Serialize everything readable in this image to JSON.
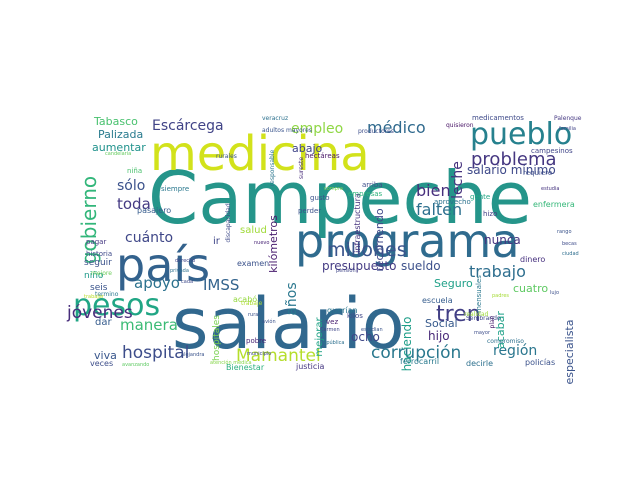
{
  "words": [
    {
      "text": "Campeche",
      "color": "#25958a"
    },
    {
      "text": "salario",
      "color": "#31688e"
    },
    {
      "text": "programa",
      "color": "#2f6b8e"
    },
    {
      "text": "medicina",
      "color": "#d2e21b"
    },
    {
      "text": "país",
      "color": "#33628d"
    },
    {
      "text": "pueblo",
      "color": "#26818e"
    },
    {
      "text": "pesos",
      "color": "#21a685"
    },
    {
      "text": "problema",
      "color": "#453781"
    },
    {
      "text": "corrupción",
      "color": "#2a788e"
    },
    {
      "text": "Mamantel",
      "color": "#b5de2b"
    },
    {
      "text": "hospital",
      "color": "#3d4d8a"
    },
    {
      "text": "tren",
      "color": "#423f85"
    },
    {
      "text": "millones",
      "color": "#3a548c"
    },
    {
      "text": "trabajo",
      "color": "#2e6e8e"
    },
    {
      "text": "médico",
      "color": "#306a8e"
    },
    {
      "text": "empleo",
      "color": "#8fd744"
    },
    {
      "text": "Escárcega",
      "color": "#414487"
    },
    {
      "text": "apoyo",
      "color": "#2c728e"
    },
    {
      "text": "IMSS",
      "color": "#33638d"
    },
    {
      "text": "jóvenes",
      "color": "#472d7b"
    },
    {
      "text": "manera",
      "color": "#3bbb75"
    },
    {
      "text": "bien",
      "color": "#472f7d"
    },
    {
      "text": "falten",
      "color": "#2d708e"
    },
    {
      "text": "toda",
      "color": "#443a83"
    },
    {
      "text": "cuánto",
      "color": "#3f4788"
    },
    {
      "text": "gobierno",
      "color": "#32b67a"
    },
    {
      "text": "leche",
      "color": "#46327e"
    },
    {
      "text": "región",
      "color": "#2a768e"
    },
    {
      "text": "sólo",
      "color": "#3b528b"
    },
    {
      "text": "aumentar",
      "color": "#20928c"
    },
    {
      "text": "Palizada",
      "color": "#297b8e"
    },
    {
      "text": "Tabasco",
      "color": "#48c16e"
    },
    {
      "text": "salario mínimo",
      "color": "#3e4989"
    },
    {
      "text": "presupuesto",
      "color": "#443b84"
    },
    {
      "text": "kilómetros",
      "color": "#481c6e"
    },
    {
      "text": "años",
      "color": "#2a778e"
    },
    {
      "text": "sueldo",
      "color": "#3c508b"
    },
    {
      "text": "Seguro",
      "color": "#1fa088"
    },
    {
      "text": "cuatro",
      "color": "#5ec962"
    },
    {
      "text": "hijo",
      "color": "#482878"
    },
    {
      "text": "recorriendo",
      "color": "#3f4889"
    },
    {
      "text": "haciendo",
      "color": "#1f9e89"
    },
    {
      "text": "Social",
      "color": "#375a8c"
    },
    {
      "text": "acabar",
      "color": "#1fa188"
    },
    {
      "text": "especialista",
      "color": "#3a538b"
    },
    {
      "text": "ocho",
      "color": "#3f4788"
    },
    {
      "text": "nunca",
      "color": "#46337f"
    },
    {
      "text": "abajo",
      "color": "#404588"
    },
    {
      "text": "viva",
      "color": "#39568c"
    },
    {
      "text": "dar",
      "color": "#365c8d"
    },
    {
      "text": "seguir",
      "color": "#3b528b"
    },
    {
      "text": "niño",
      "color": "#1f9a8a"
    },
    {
      "text": "seis",
      "color": "#3a538b"
    },
    {
      "text": "pasajero",
      "color": "#365c8d"
    },
    {
      "text": "siempre",
      "color": "#2a788e"
    },
    {
      "text": "hospitales",
      "color": "#7ad151"
    },
    {
      "text": "salud",
      "color": "#a0da39"
    },
    {
      "text": "ir",
      "color": "#3f4788"
    },
    {
      "text": "mejorar",
      "color": "#20a386"
    },
    {
      "text": "examen",
      "color": "#3b528b"
    },
    {
      "text": "dinero",
      "color": "#46307e"
    },
    {
      "text": "escuela",
      "color": "#365d8d"
    },
    {
      "text": "enfermera",
      "color": "#35b779"
    },
    {
      "text": "medicamentos",
      "color": "#3e4a89"
    },
    {
      "text": "hectáreas",
      "color": "#481668"
    },
    {
      "text": "pagar",
      "color": "#453882"
    },
    {
      "text": "historia",
      "color": "#3e4989"
    },
    {
      "text": "acabó",
      "color": "#95d840"
    },
    {
      "text": "justicia",
      "color": "#453781"
    },
    {
      "text": "Bienestar",
      "color": "#29af7f"
    },
    {
      "text": "decirle",
      "color": "#2d708e"
    },
    {
      "text": "policías",
      "color": "#3b528b"
    },
    {
      "text": "veces",
      "color": "#3d4e8a"
    },
    {
      "text": "ferrocarril",
      "color": "#297a8e"
    },
    {
      "text": "querían",
      "color": "#2a768e"
    },
    {
      "text": "kilos",
      "color": "#3f4788"
    },
    {
      "text": "vez",
      "color": "#481f70"
    },
    {
      "text": "pobre",
      "color": "#482475"
    },
    {
      "text": "Sembrando",
      "color": "#3e4989"
    },
    {
      "text": "mensuales",
      "color": "#2a778e"
    },
    {
      "text": "hizo",
      "color": "#433e85"
    },
    {
      "text": "gente",
      "color": "#22a785"
    },
    {
      "text": "requiere",
      "color": "#3d4e8a"
    },
    {
      "text": "campesinos",
      "color": "#404588"
    },
    {
      "text": "infraestructura",
      "color": "#46337f"
    },
    {
      "text": "arriba",
      "color": "#3d4e8a"
    },
    {
      "text": "empresas",
      "color": "#2fb47c"
    },
    {
      "text": "aprovecho",
      "color": "#2c728e"
    },
    {
      "text": "sureste",
      "color": "#472c7a"
    },
    {
      "text": "gusto",
      "color": "#3b528b"
    },
    {
      "text": "perder",
      "color": "#3b528b"
    },
    {
      "text": "niña",
      "color": "#4ac16d"
    },
    {
      "text": "rurales",
      "color": "#3a548c"
    },
    {
      "text": "adultos mayores",
      "color": "#3a548c"
    },
    {
      "text": "productores",
      "color": "#3d4e8a"
    },
    {
      "text": "veracruz",
      "color": "#2c718e"
    },
    {
      "text": "quisieron",
      "color": "#471365"
    },
    {
      "text": "Palenque",
      "color": "#453882"
    },
    {
      "text": "familia",
      "color": "#414487"
    },
    {
      "text": "estudia",
      "color": "#45337f"
    },
    {
      "text": "candelaria",
      "color": "#65cb5e"
    },
    {
      "text": "responsable",
      "color": "#2a768e"
    },
    {
      "text": "discapacidad",
      "color": "#3e4a89"
    },
    {
      "text": "compra",
      "color": "#7fd34e"
    },
    {
      "text": "termino",
      "color": "#2a788e"
    },
    {
      "text": "República",
      "color": "#2d708e"
    },
    {
      "text": "mayor",
      "color": "#3d4d8a"
    },
    {
      "text": "Carmen",
      "color": "#3f4788"
    },
    {
      "text": "estudian",
      "color": "#3a548c"
    },
    {
      "text": "rural",
      "color": "#3b528b"
    },
    {
      "text": "municipio",
      "color": "#3e4a89"
    },
    {
      "text": "alejandra",
      "color": "#3a538b"
    },
    {
      "text": "pensión",
      "color": "#404688"
    },
    {
      "text": "trabaje",
      "color": "#addc30"
    },
    {
      "text": "plan",
      "color": "#481a6c"
    },
    {
      "text": "padres",
      "color": "#a5db36"
    },
    {
      "text": "becas",
      "color": "#3e4c8a"
    },
    {
      "text": "ciudad",
      "color": "#2e6e8e"
    },
    {
      "text": "mejore",
      "color": "#6ccd5a"
    },
    {
      "text": "trabajar",
      "color": "#b8de29"
    },
    {
      "text": "derecho",
      "color": "#404688"
    },
    {
      "text": "privada",
      "color": "#2d708e"
    },
    {
      "text": "avión",
      "color": "#3b528b"
    },
    {
      "text": "nuevo",
      "color": "#482576"
    },
    {
      "text": "cada",
      "color": "#3e4989"
    },
    {
      "text": "compromiso",
      "color": "#2d708e"
    },
    {
      "text": "realidad",
      "color": "#9bd93c"
    },
    {
      "text": "rango",
      "color": "#3a538b"
    },
    {
      "text": "lujo",
      "color": "#3c508b"
    },
    {
      "text": "avanzando",
      "color": "#5ec962"
    },
    {
      "text": "atención médica",
      "color": "#86d549"
    }
  ]
}
